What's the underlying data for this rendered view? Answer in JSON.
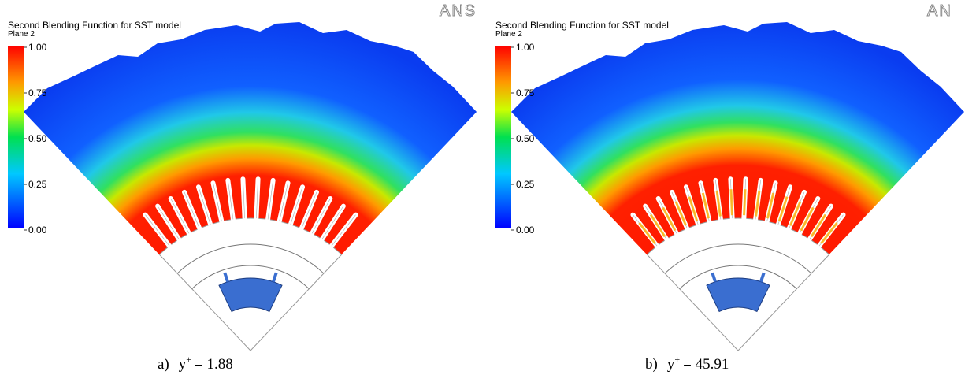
{
  "panels": [
    {
      "title": "Second Blending Function for SST model",
      "plane": "Plane 2",
      "logo": "ANS",
      "colorbar_ticks": [
        "1.00",
        "0.75",
        "0.50",
        "0.25",
        "0.00"
      ],
      "caption": {
        "label": "a)",
        "variable": "y",
        "superscript": "+",
        "value": "= 1.88"
      }
    },
    {
      "title": "Second Blending Function for SST model",
      "plane": "Plane 2",
      "logo": "AN",
      "colorbar_ticks": [
        "1.00",
        "0.75",
        "0.50",
        "0.25",
        "0.00"
      ],
      "caption": {
        "label": "b)",
        "variable": "y",
        "superscript": "+",
        "value": "= 45.91"
      }
    }
  ]
}
